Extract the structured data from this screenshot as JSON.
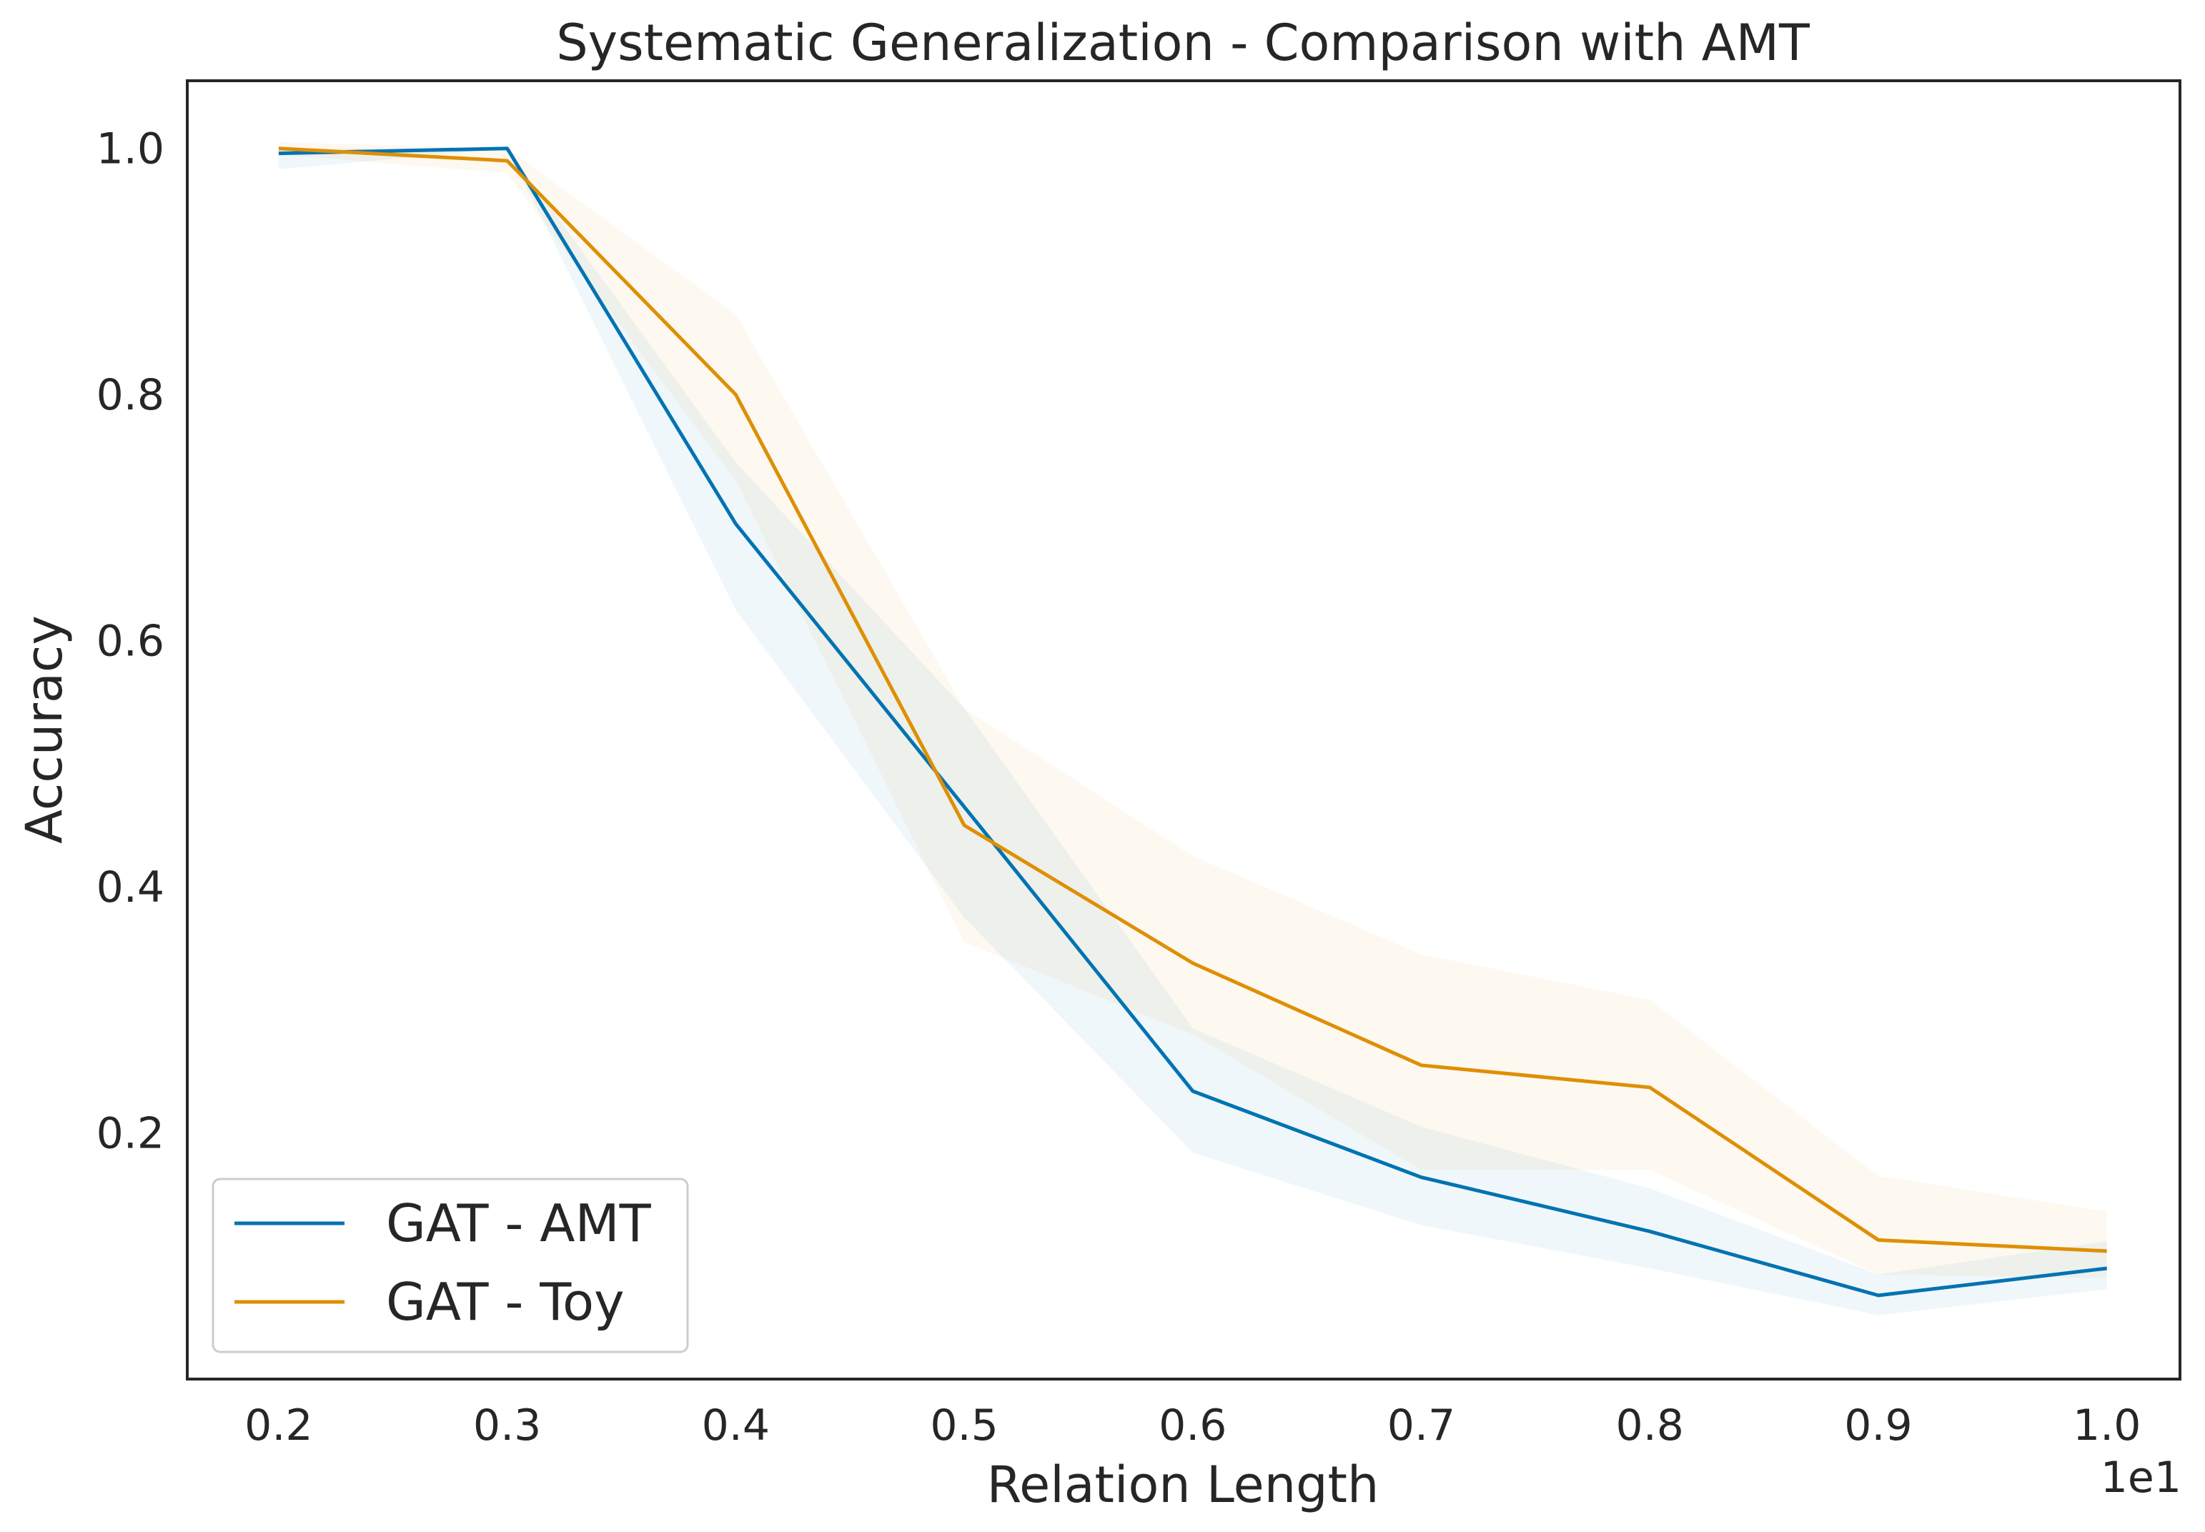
{
  "chart_data": {
    "type": "line",
    "title": "Systematic Generalization - Comparison with AMT",
    "xlabel": "Relation Length",
    "ylabel": "Accuracy",
    "x_offset_label": "1e1",
    "x": [
      0.2,
      0.3,
      0.4,
      0.5,
      0.6,
      0.7,
      0.8,
      0.9,
      1.0
    ],
    "xlim": [
      0.16,
      1.032
    ],
    "ylim": [
      0.0,
      1.055
    ],
    "xticks": [
      "0.2",
      "0.3",
      "0.4",
      "0.5",
      "0.6",
      "0.7",
      "0.8",
      "0.9",
      "1.0"
    ],
    "yticks": [
      "0.2",
      "0.4",
      "0.6",
      "0.8",
      "1.0"
    ],
    "grid": false,
    "legend_position": "lower-left",
    "series": [
      {
        "name": "GAT - AMT",
        "color": "#0173b2",
        "values": [
          0.996,
          1.0,
          0.695,
          0.465,
          0.234,
          0.164,
          0.12,
          0.068,
          0.09
        ],
        "band_low": [
          0.983,
          1.0,
          0.625,
          0.375,
          0.184,
          0.125,
          0.09,
          0.052,
          0.073
        ],
        "band_high": [
          1.0,
          1.0,
          0.745,
          0.545,
          0.285,
          0.205,
          0.155,
          0.085,
          0.112
        ]
      },
      {
        "name": "GAT - Toy",
        "color": "#de8f05",
        "values": [
          1.0,
          0.99,
          0.8,
          0.45,
          0.338,
          0.255,
          0.237,
          0.113,
          0.104
        ],
        "band_low": [
          0.995,
          0.98,
          0.73,
          0.355,
          0.28,
          0.17,
          0.17,
          0.085,
          0.082
        ],
        "band_high": [
          1.005,
          1.0,
          0.865,
          0.545,
          0.425,
          0.345,
          0.308,
          0.165,
          0.136
        ]
      }
    ]
  }
}
